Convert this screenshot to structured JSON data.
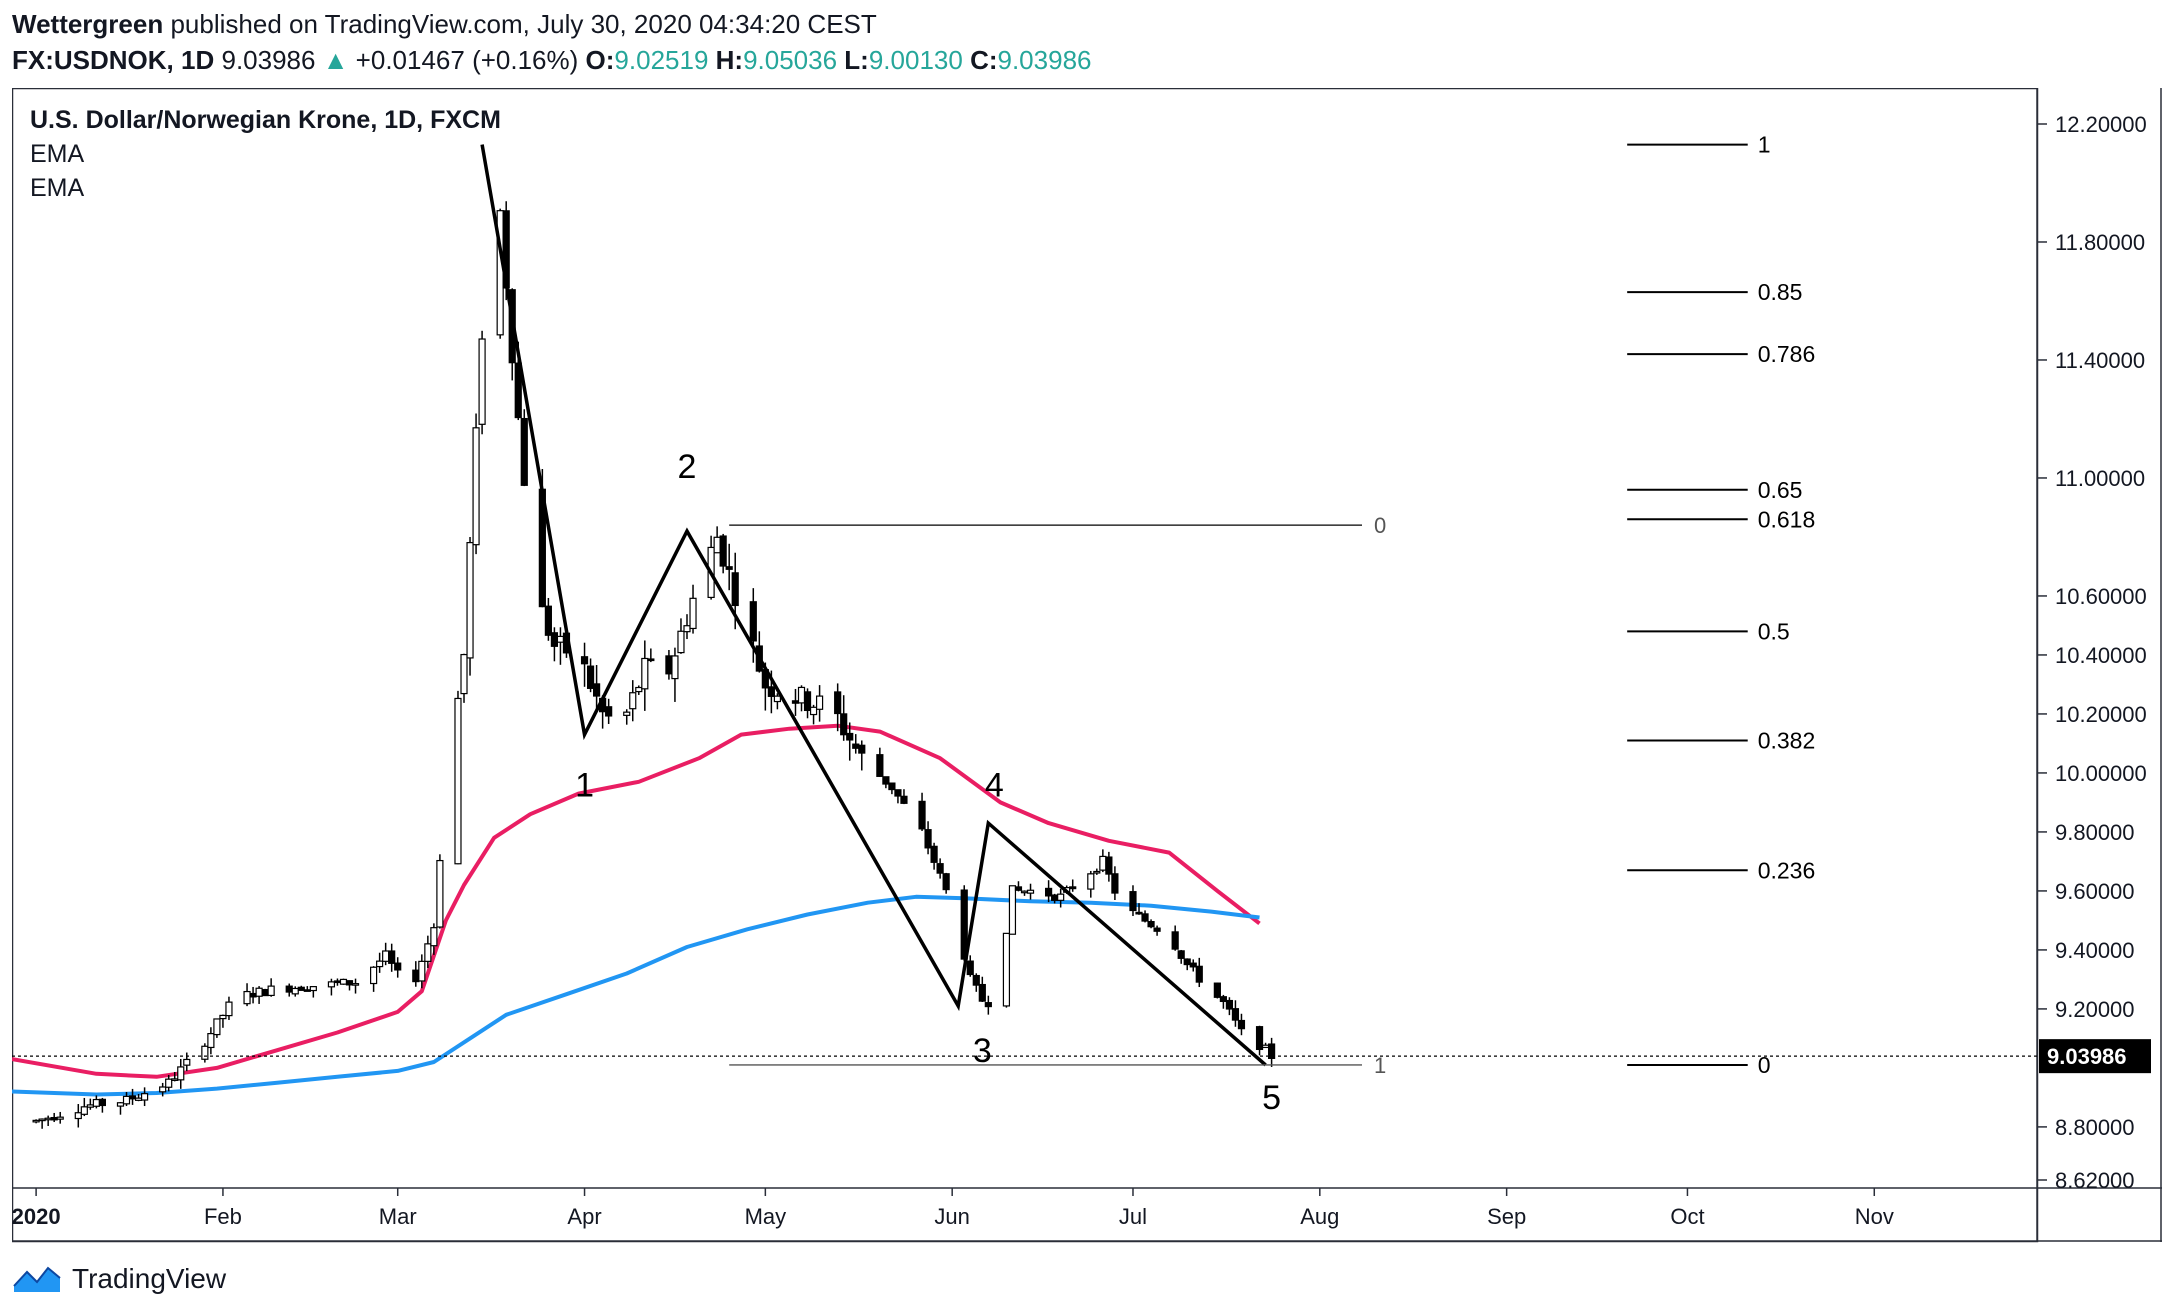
{
  "header": {
    "author": "Wettergreen",
    "published": "published on TradingView.com, July 30, 2020 04:34:20 CEST",
    "symbol": "FX:USDNOK, 1D",
    "last": "9.03986",
    "change_arrow": "▲",
    "change": "+0.01467 (+0.16%)",
    "o_label": "O:",
    "o": "9.02519",
    "h_label": "H:",
    "h": "9.05036",
    "l_label": "L:",
    "l": "9.00130",
    "c_label": "C:",
    "c": "9.03986"
  },
  "legend": {
    "title": "U.S. Dollar/Norwegian Krone, 1D, FXCM",
    "ind1": "EMA",
    "ind2": "EMA"
  },
  "footer": {
    "brand": "TradingView",
    "logo_icon": "tradingview-logo-icon"
  },
  "colors": {
    "up": "#ffffff",
    "down": "#000000",
    "ema_fast": "#e91e63",
    "ema_slow": "#2196f3",
    "accent_green": "#26a69a",
    "text": "#131722",
    "grid": "#e0e3eb"
  },
  "chart_data": {
    "type": "candlestick",
    "title": "U.S. Dollar/Norwegian Krone, 1D, FXCM",
    "y_ticks": [
      "12.20000",
      "11.80000",
      "11.40000",
      "11.00000",
      "10.60000",
      "10.40000",
      "10.20000",
      "10.00000",
      "9.80000",
      "9.60000",
      "9.40000",
      "9.20000",
      "8.80000",
      "8.62000"
    ],
    "y_tick_values": [
      12.2,
      11.8,
      11.4,
      11.0,
      10.6,
      10.4,
      10.2,
      10.0,
      9.8,
      9.6,
      9.4,
      9.2,
      8.8,
      8.62
    ],
    "y_range": [
      8.62,
      12.2
    ],
    "x_ticks": [
      "2020",
      "Feb",
      "Mar",
      "Apr",
      "May",
      "Jun",
      "Jul",
      "Aug",
      "Sep",
      "Oct",
      "Nov"
    ],
    "x_tick_days": [
      0,
      31,
      60,
      91,
      121,
      152,
      182,
      213,
      244,
      274,
      305
    ],
    "x_range_days": [
      -4,
      332
    ],
    "last_price_label": "9.03986",
    "last_price": 9.03986,
    "candles_anchor": [
      [
        0,
        8.82
      ],
      [
        8,
        8.87
      ],
      [
        15,
        8.89
      ],
      [
        22,
        8.95
      ],
      [
        27,
        9.06
      ],
      [
        33,
        9.24
      ],
      [
        40,
        9.27
      ],
      [
        47,
        9.28
      ],
      [
        53,
        9.29
      ],
      [
        58,
        9.38
      ],
      [
        62,
        9.25
      ],
      [
        66,
        9.48
      ],
      [
        68,
        9.95
      ],
      [
        71,
        10.4
      ],
      [
        74,
        11.5
      ],
      [
        77,
        11.9
      ],
      [
        80,
        11.2
      ],
      [
        83,
        10.6
      ],
      [
        86,
        10.43
      ],
      [
        90,
        10.4
      ],
      [
        94,
        10.2
      ],
      [
        97,
        10.15
      ],
      [
        101,
        10.35
      ],
      [
        105,
        10.35
      ],
      [
        110,
        10.65
      ],
      [
        113,
        10.8
      ],
      [
        117,
        10.55
      ],
      [
        121,
        10.3
      ],
      [
        127,
        10.25
      ],
      [
        132,
        10.22
      ],
      [
        137,
        10.05
      ],
      [
        142,
        9.95
      ],
      [
        147,
        9.8
      ],
      [
        152,
        9.55
      ],
      [
        155,
        9.3
      ],
      [
        157,
        9.23
      ],
      [
        159,
        9.22
      ],
      [
        162,
        9.6
      ],
      [
        166,
        9.6
      ],
      [
        170,
        9.58
      ],
      [
        174,
        9.65
      ],
      [
        177,
        9.7
      ],
      [
        180,
        9.55
      ],
      [
        184,
        9.5
      ],
      [
        188,
        9.45
      ],
      [
        191,
        9.35
      ],
      [
        194,
        9.28
      ],
      [
        197,
        9.22
      ],
      [
        200,
        9.12
      ],
      [
        203,
        9.08
      ],
      [
        205,
        9.04
      ]
    ],
    "ema_fast": [
      [
        -4,
        9.03
      ],
      [
        10,
        8.98
      ],
      [
        20,
        8.97
      ],
      [
        30,
        9.0
      ],
      [
        40,
        9.06
      ],
      [
        50,
        9.12
      ],
      [
        60,
        9.19
      ],
      [
        64,
        9.26
      ],
      [
        68,
        9.5
      ],
      [
        71,
        9.62
      ],
      [
        76,
        9.78
      ],
      [
        82,
        9.86
      ],
      [
        90,
        9.93
      ],
      [
        100,
        9.97
      ],
      [
        110,
        10.05
      ],
      [
        117,
        10.13
      ],
      [
        125,
        10.15
      ],
      [
        133,
        10.16
      ],
      [
        140,
        10.14
      ],
      [
        150,
        10.05
      ],
      [
        160,
        9.9
      ],
      [
        168,
        9.83
      ],
      [
        178,
        9.77
      ],
      [
        188,
        9.73
      ],
      [
        196,
        9.6
      ],
      [
        203,
        9.49
      ]
    ],
    "ema_slow": [
      [
        -4,
        8.92
      ],
      [
        10,
        8.91
      ],
      [
        20,
        8.915
      ],
      [
        30,
        8.93
      ],
      [
        40,
        8.95
      ],
      [
        50,
        8.97
      ],
      [
        60,
        8.99
      ],
      [
        66,
        9.02
      ],
      [
        72,
        9.1
      ],
      [
        78,
        9.18
      ],
      [
        88,
        9.25
      ],
      [
        98,
        9.32
      ],
      [
        108,
        9.41
      ],
      [
        118,
        9.47
      ],
      [
        128,
        9.52
      ],
      [
        138,
        9.56
      ],
      [
        146,
        9.58
      ],
      [
        154,
        9.575
      ],
      [
        165,
        9.565
      ],
      [
        175,
        9.56
      ],
      [
        185,
        9.55
      ],
      [
        195,
        9.53
      ],
      [
        203,
        9.51
      ]
    ],
    "wave_points": [
      [
        74,
        12.13
      ],
      [
        91,
        10.13
      ],
      [
        108,
        10.82
      ],
      [
        153,
        9.21
      ],
      [
        158,
        9.83
      ],
      [
        204,
        9.01
      ]
    ],
    "wave_labels": [
      {
        "text": "1",
        "day": 91,
        "price": 9.92
      },
      {
        "text": "2",
        "day": 108,
        "price": 11.0
      },
      {
        "text": "3",
        "day": 157,
        "price": 9.02
      },
      {
        "text": "4",
        "day": 159,
        "price": 9.92
      },
      {
        "text": "5",
        "day": 205,
        "price": 8.86
      }
    ],
    "fib_retracement": {
      "levels": [
        "1",
        "0.85",
        "0.786",
        "0.65",
        "0.618",
        "0.5",
        "0.382",
        "0.236",
        "0"
      ],
      "prices": [
        12.13,
        11.63,
        11.42,
        10.96,
        10.86,
        10.48,
        10.11,
        9.67,
        9.01
      ]
    },
    "fib_extension": {
      "labels": [
        "0",
        "1"
      ],
      "prices": [
        10.84,
        9.01
      ]
    }
  }
}
